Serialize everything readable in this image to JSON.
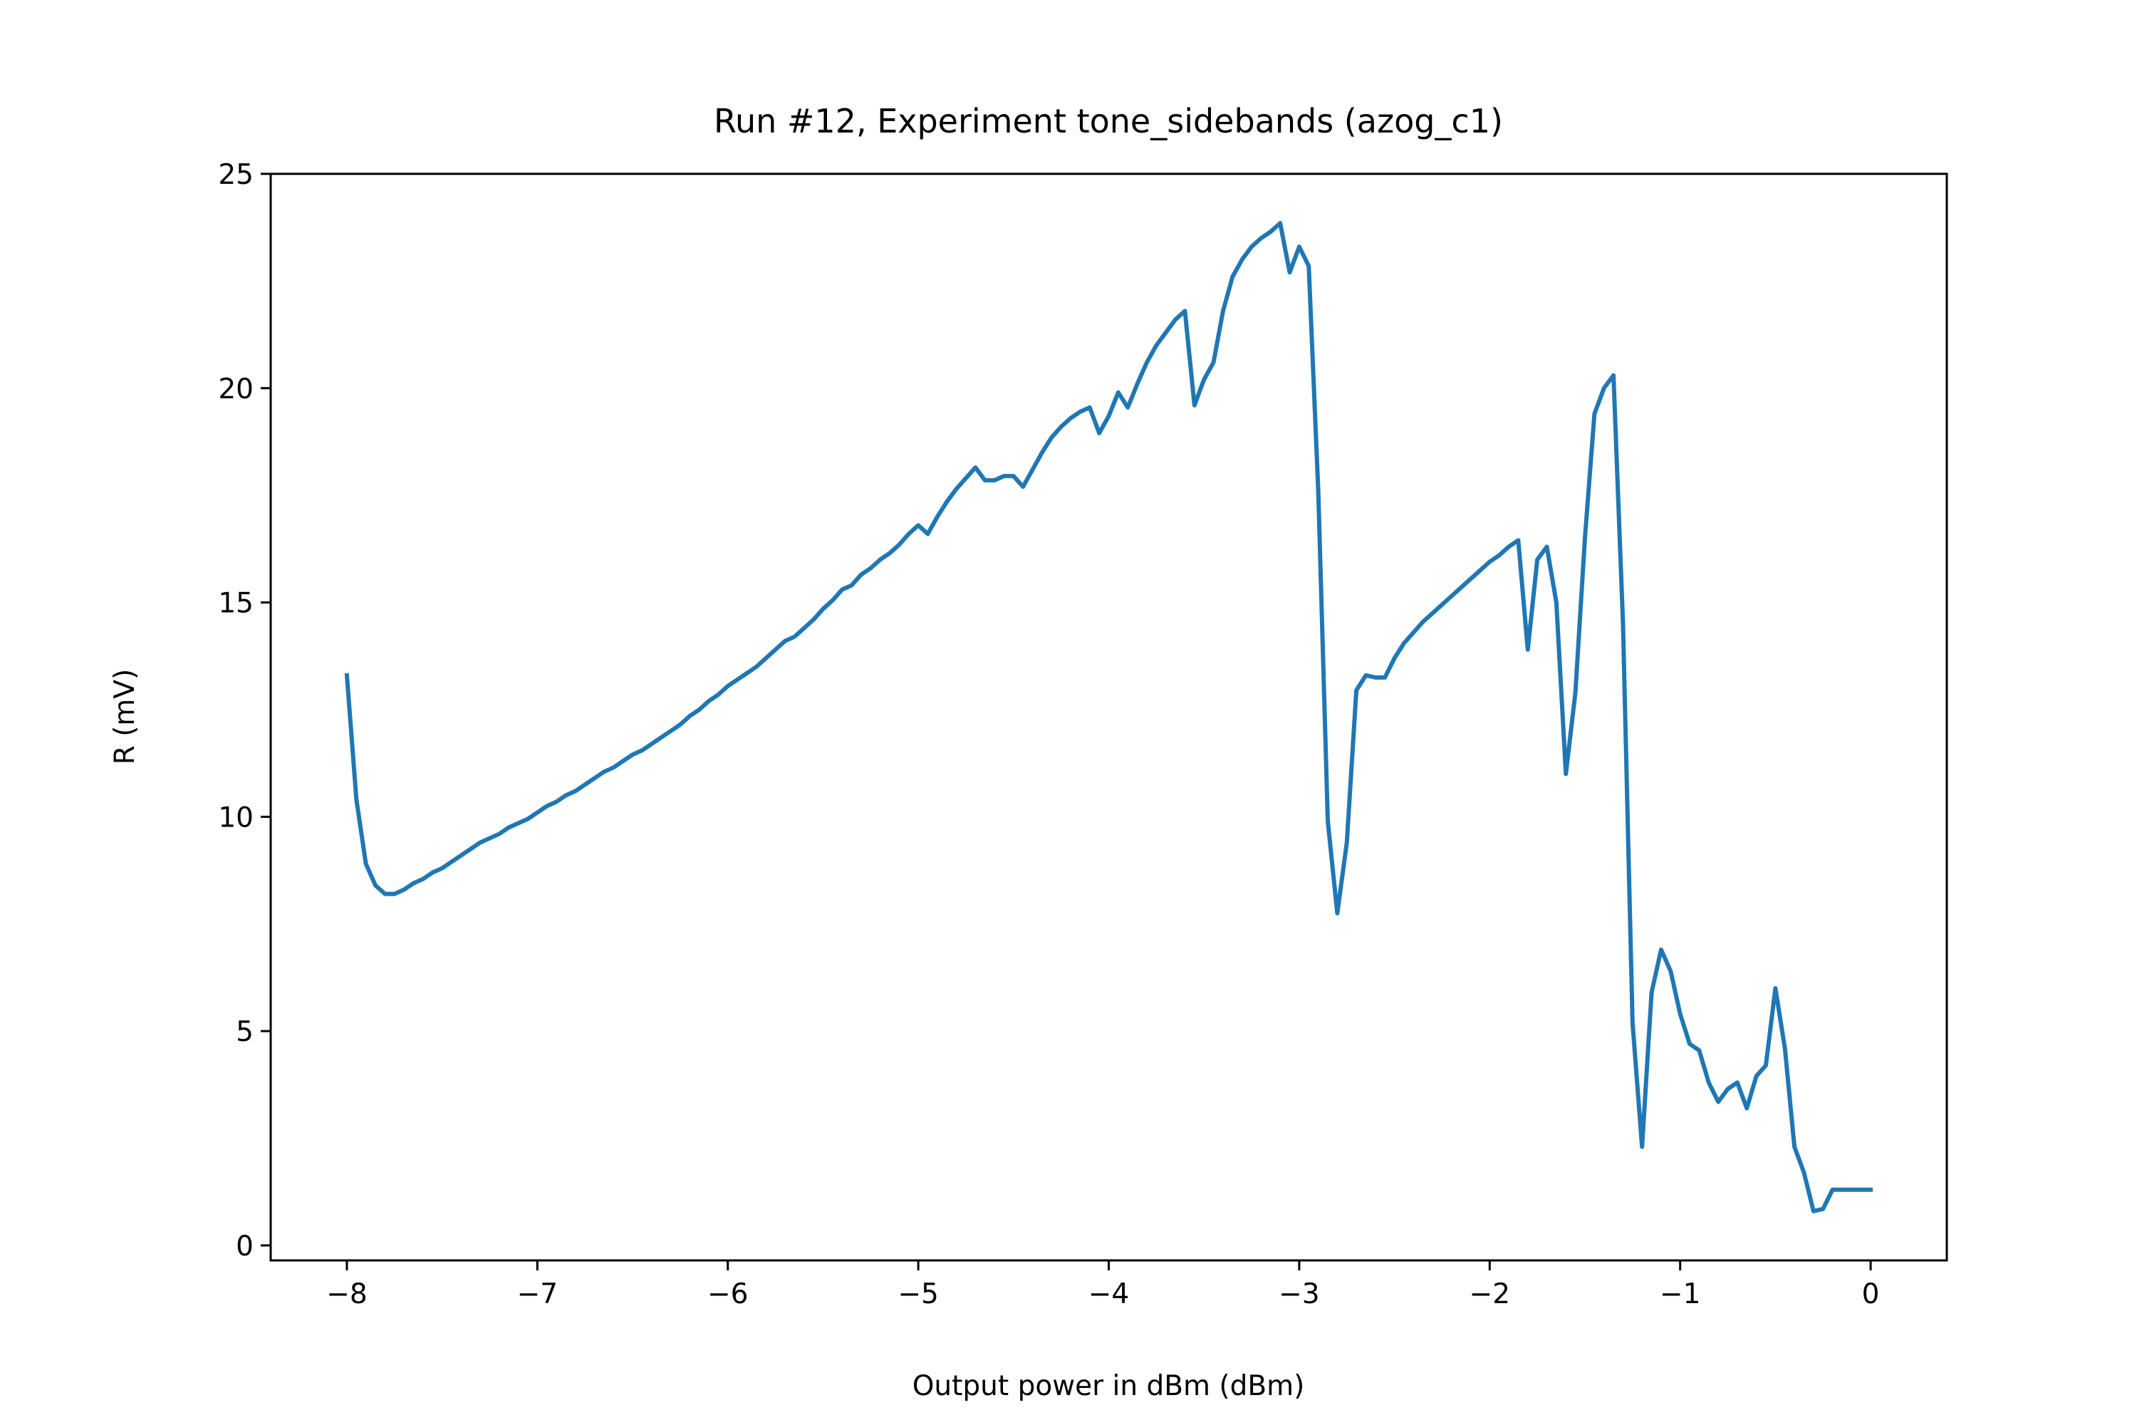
{
  "chart_data": {
    "type": "line",
    "title": "Run #12, Experiment tone_sidebands (azog_c1)",
    "xlabel": "Output power in dBm (dBm)",
    "ylabel": "R (mV)",
    "color": "#1f77b4",
    "x": [
      -8.0,
      -7.95,
      -7.9,
      -7.85,
      -7.8,
      -7.75,
      -7.7,
      -7.65,
      -7.6,
      -7.55,
      -7.5,
      -7.45,
      -7.4,
      -7.35,
      -7.3,
      -7.25,
      -7.2,
      -7.15,
      -7.1,
      -7.05,
      -7.0,
      -6.95,
      -6.9,
      -6.85,
      -6.8,
      -6.75,
      -6.7,
      -6.65,
      -6.6,
      -6.55,
      -6.5,
      -6.45,
      -6.4,
      -6.35,
      -6.3,
      -6.25,
      -6.2,
      -6.15,
      -6.1,
      -6.05,
      -6.0,
      -5.95,
      -5.9,
      -5.85,
      -5.8,
      -5.75,
      -5.7,
      -5.65,
      -5.6,
      -5.55,
      -5.5,
      -5.45,
      -5.4,
      -5.35,
      -5.3,
      -5.25,
      -5.2,
      -5.15,
      -5.1,
      -5.05,
      -5.0,
      -4.95,
      -4.9,
      -4.85,
      -4.8,
      -4.75,
      -4.7,
      -4.65,
      -4.6,
      -4.55,
      -4.5,
      -4.45,
      -4.4,
      -4.35,
      -4.3,
      -4.25,
      -4.2,
      -4.15,
      -4.1,
      -4.05,
      -4.0,
      -3.95,
      -3.9,
      -3.85,
      -3.8,
      -3.75,
      -3.7,
      -3.65,
      -3.6,
      -3.55,
      -3.5,
      -3.45,
      -3.4,
      -3.35,
      -3.3,
      -3.25,
      -3.2,
      -3.15,
      -3.1,
      -3.05,
      -3.0,
      -2.95,
      -2.9,
      -2.85,
      -2.8,
      -2.75,
      -2.7,
      -2.65,
      -2.6,
      -2.55,
      -2.5,
      -2.45,
      -2.4,
      -2.35,
      -2.3,
      -2.25,
      -2.2,
      -2.15,
      -2.1,
      -2.05,
      -2.0,
      -1.95,
      -1.9,
      -1.85,
      -1.8,
      -1.75,
      -1.7,
      -1.65,
      -1.6,
      -1.55,
      -1.5,
      -1.45,
      -1.4,
      -1.35,
      -1.3,
      -1.25,
      -1.2,
      -1.15,
      -1.1,
      -1.05,
      -1.0,
      -0.95,
      -0.9,
      -0.85,
      -0.8,
      -0.75,
      -0.7,
      -0.65,
      -0.6,
      -0.55,
      -0.5,
      -0.45,
      -0.4,
      -0.35,
      -0.3,
      -0.25,
      -0.2,
      -0.15,
      -0.1,
      -0.05,
      0.0
    ],
    "values": [
      13.3,
      10.4,
      8.9,
      8.4,
      8.2,
      8.2,
      8.3,
      8.45,
      8.55,
      8.7,
      8.8,
      8.95,
      9.1,
      9.25,
      9.4,
      9.5,
      9.6,
      9.75,
      9.85,
      9.95,
      10.1,
      10.25,
      10.35,
      10.5,
      10.6,
      10.75,
      10.9,
      11.05,
      11.15,
      11.3,
      11.45,
      11.55,
      11.7,
      11.85,
      12.0,
      12.15,
      12.35,
      12.5,
      12.7,
      12.85,
      13.05,
      13.2,
      13.35,
      13.5,
      13.7,
      13.9,
      14.1,
      14.2,
      14.4,
      14.6,
      14.85,
      15.05,
      15.3,
      15.4,
      15.65,
      15.8,
      16.0,
      16.15,
      16.35,
      16.6,
      16.8,
      16.6,
      17.0,
      17.35,
      17.65,
      17.9,
      18.15,
      17.85,
      17.85,
      17.95,
      17.95,
      17.7,
      18.1,
      18.5,
      18.85,
      19.1,
      19.3,
      19.45,
      19.55,
      18.95,
      19.35,
      19.9,
      19.55,
      20.1,
      20.6,
      21.0,
      21.3,
      21.6,
      21.8,
      19.6,
      20.2,
      20.6,
      21.8,
      22.6,
      23.0,
      23.3,
      23.5,
      23.65,
      23.85,
      22.7,
      23.3,
      22.85,
      17.6,
      9.9,
      7.75,
      9.4,
      12.95,
      13.3,
      13.25,
      13.25,
      13.7,
      14.05,
      14.3,
      14.55,
      14.75,
      14.95,
      15.15,
      15.35,
      15.55,
      15.75,
      15.95,
      16.1,
      16.3,
      16.45,
      13.9,
      16.0,
      16.3,
      15.0,
      11.0,
      12.9,
      16.5,
      19.4,
      20.0,
      20.3,
      14.5,
      5.2,
      2.3,
      5.9,
      6.9,
      6.4,
      5.4,
      4.7,
      4.55,
      3.8,
      3.35,
      3.65,
      3.8,
      3.2,
      3.95,
      4.2,
      6.0,
      4.6,
      2.3,
      1.7,
      0.8,
      0.85,
      1.3,
      1.3,
      1.3,
      1.3,
      1.3
    ],
    "xlim": [
      -8.4,
      0.4
    ],
    "ylim": [
      -0.35,
      25.0
    ],
    "xticks": [
      {
        "value": -8,
        "label": "−8"
      },
      {
        "value": -7,
        "label": "−7"
      },
      {
        "value": -6,
        "label": "−6"
      },
      {
        "value": -5,
        "label": "−5"
      },
      {
        "value": -4,
        "label": "−4"
      },
      {
        "value": -3,
        "label": "−3"
      },
      {
        "value": -2,
        "label": "−2"
      },
      {
        "value": -1,
        "label": "−1"
      },
      0
    ],
    "yticks": [
      0,
      5,
      10,
      15,
      20,
      25
    ]
  }
}
